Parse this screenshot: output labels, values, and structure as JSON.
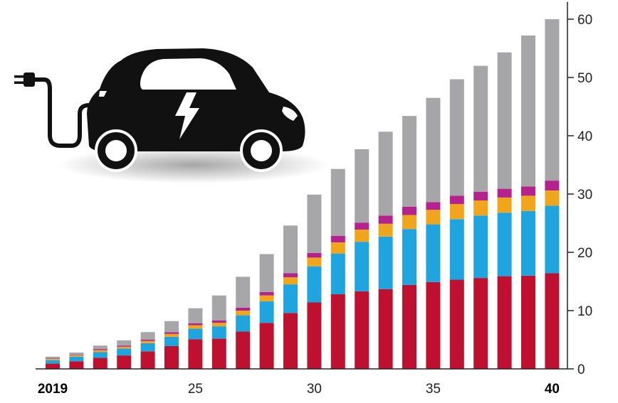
{
  "chart_data": {
    "type": "bar",
    "stacked": true,
    "x": [
      2019,
      2020,
      2021,
      2022,
      2023,
      2024,
      2025,
      2026,
      2027,
      2028,
      2029,
      2030,
      2031,
      2032,
      2033,
      2034,
      2035,
      2036,
      2037,
      2038,
      2039,
      2040
    ],
    "x_tick_labels": [
      {
        "x": 2019,
        "label": "2019",
        "bold": true
      },
      {
        "x": 2025,
        "label": "25",
        "bold": false
      },
      {
        "x": 2030,
        "label": "30",
        "bold": false
      },
      {
        "x": 2035,
        "label": "35",
        "bold": false
      },
      {
        "x": 2040,
        "label": "40",
        "bold": true
      }
    ],
    "y_ticks": [
      0,
      10,
      20,
      30,
      40,
      50,
      60
    ],
    "ylim": [
      0,
      62
    ],
    "y_axis_side": "right",
    "grid": false,
    "legend": "none",
    "series": [
      {
        "color": "#c0102f",
        "values": [
          0.9,
          1.3,
          1.9,
          2.3,
          3.0,
          3.9,
          5.1,
          5.2,
          6.4,
          7.9,
          9.6,
          11.4,
          12.8,
          13.3,
          13.7,
          14.4,
          14.9,
          15.3,
          15.6,
          15.9,
          16.0,
          16.4
        ]
      },
      {
        "color": "#1ea5e0",
        "values": [
          0.6,
          0.8,
          1.0,
          1.2,
          1.4,
          1.6,
          1.8,
          2.1,
          2.8,
          3.7,
          4.9,
          6.2,
          7.0,
          8.5,
          9.0,
          9.6,
          9.9,
          10.4,
          10.7,
          10.9,
          11.1,
          11.6
        ]
      },
      {
        "color": "#f0a51a",
        "values": [
          0.2,
          0.2,
          0.3,
          0.3,
          0.4,
          0.5,
          0.6,
          0.6,
          0.8,
          1.0,
          1.2,
          1.5,
          1.9,
          2.1,
          2.2,
          2.4,
          2.5,
          2.6,
          2.6,
          2.6,
          2.6,
          2.6
        ]
      },
      {
        "color": "#b5228e",
        "values": [
          0.1,
          0.1,
          0.2,
          0.2,
          0.2,
          0.3,
          0.3,
          0.4,
          0.5,
          0.6,
          0.7,
          0.8,
          1.1,
          1.2,
          1.4,
          1.4,
          1.3,
          1.4,
          1.5,
          1.5,
          1.6,
          1.7
        ]
      },
      {
        "color": "#a6a6a9",
        "values": [
          0.3,
          0.4,
          0.6,
          0.9,
          1.3,
          1.9,
          2.6,
          4.3,
          5.3,
          6.5,
          8.2,
          10.0,
          11.5,
          12.6,
          14.4,
          15.6,
          17.9,
          20.0,
          21.6,
          23.4,
          25.9,
          27.7
        ]
      }
    ],
    "illustration": "electric-car-with-plug"
  }
}
